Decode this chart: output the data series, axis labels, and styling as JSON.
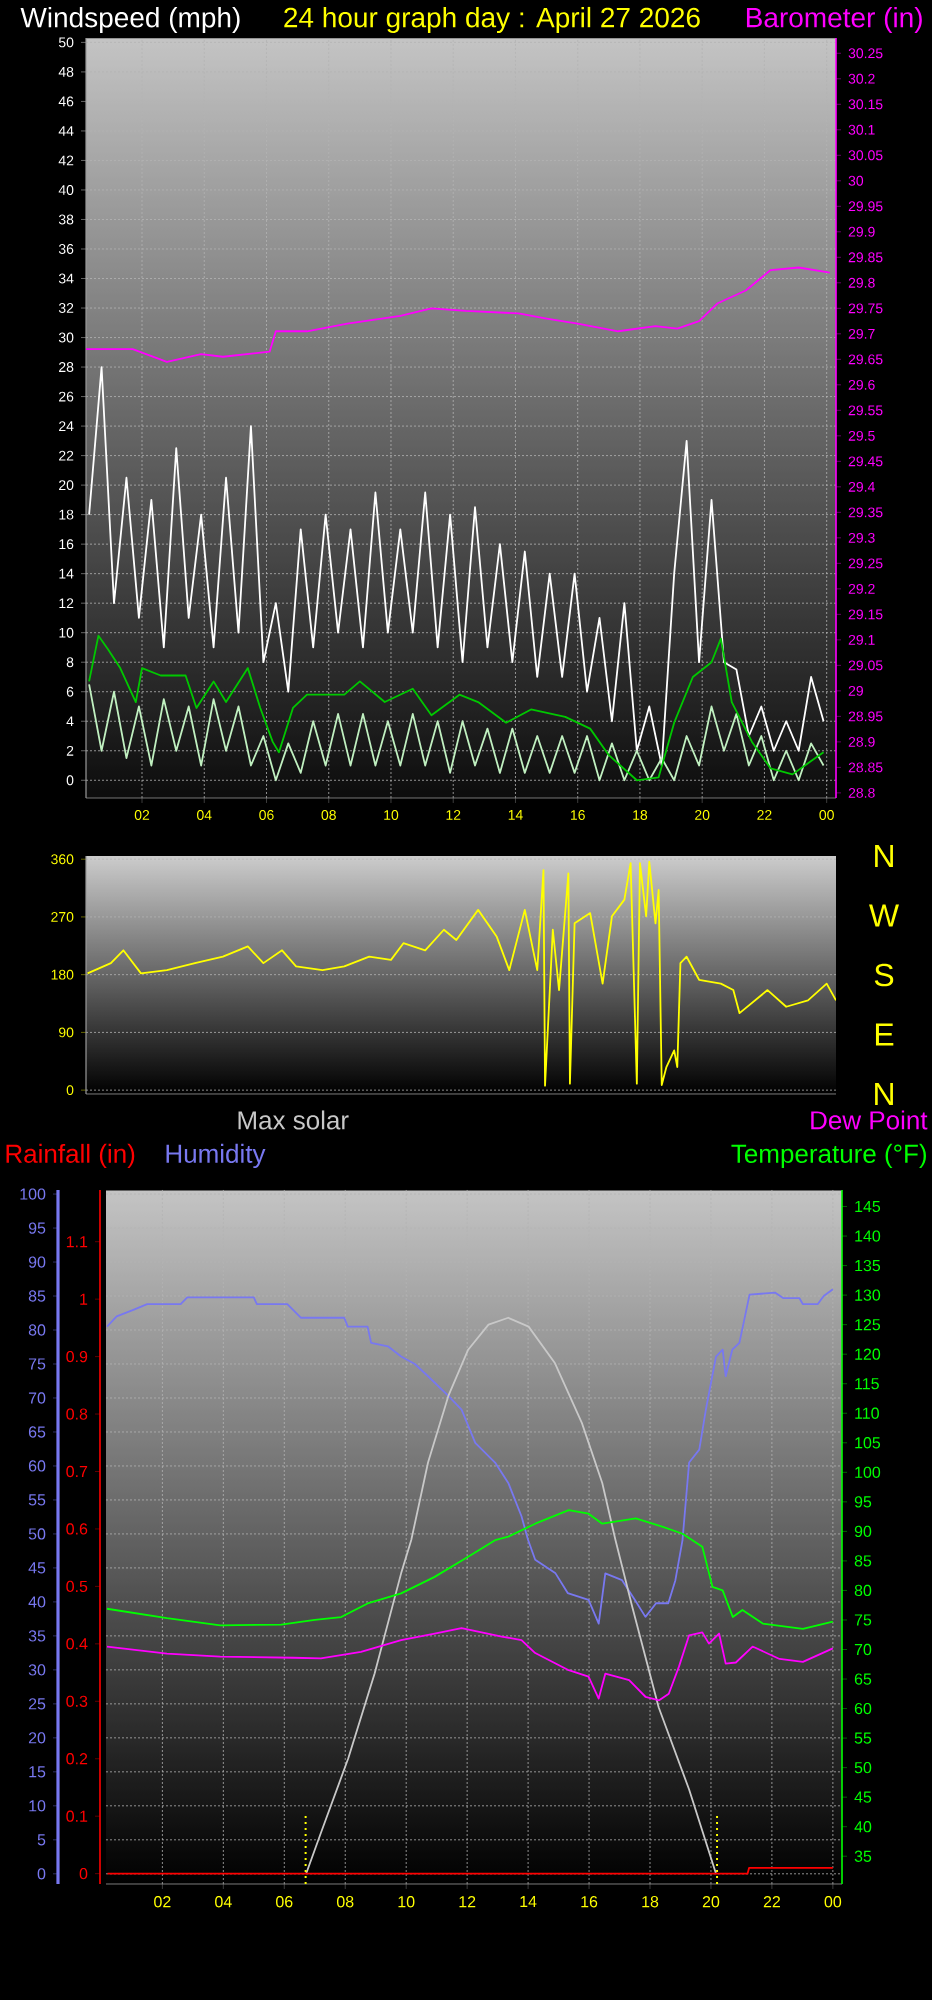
{
  "chart_data": [
    {
      "type": "line",
      "title": "24 hour graph day : April 27 2026",
      "ylabel": "Windspeed (mph)",
      "y2label": "Barometer (in)",
      "xlim": [
        "2026-04-27T00:12",
        "2026-04-28T00:18"
      ],
      "xticks": [
        {
          "value": "2026-04-27T02:00",
          "label": "02"
        },
        {
          "value": "2026-04-27T04:00",
          "label": "04"
        },
        {
          "value": "2026-04-27T06:00",
          "label": "06"
        },
        {
          "value": "2026-04-27T08:00",
          "label": "08"
        },
        {
          "value": "2026-04-27T10:00",
          "label": "10"
        },
        {
          "value": "2026-04-27T12:00",
          "label": "12"
        },
        {
          "value": "2026-04-27T14:00",
          "label": "14"
        },
        {
          "value": "2026-04-27T16:00",
          "label": "16"
        },
        {
          "value": "2026-04-27T18:00",
          "label": "18"
        },
        {
          "value": "2026-04-27T20:00",
          "label": "20"
        },
        {
          "value": "2026-04-27T22:00",
          "label": "22"
        },
        {
          "value": "2026-04-28T00:00",
          "label": "00"
        }
      ],
      "ylim": [
        -1.2,
        50.3
      ],
      "yticks": [
        0,
        2,
        4,
        6,
        8,
        10,
        12,
        14,
        16,
        18,
        20,
        22,
        24,
        26,
        28,
        30,
        32,
        34,
        36,
        38,
        40,
        42,
        44,
        46,
        48,
        50
      ],
      "y2lim": [
        28.79,
        30.28
      ],
      "y2ticks": [
        28.8,
        28.85,
        28.9,
        28.95,
        29,
        29.05,
        29.1,
        29.15,
        29.2,
        29.25,
        29.3,
        29.35,
        29.4,
        29.45,
        29.5,
        29.55,
        29.6,
        29.65,
        29.7,
        29.75,
        29.8,
        29.85,
        29.9,
        29.95,
        30,
        30.05,
        30.1,
        30.15,
        30.2,
        30.25
      ],
      "grid": true,
      "x": [
        "2026-04-27T00:18",
        "2026-04-27T00:42",
        "2026-04-27T01:06",
        "2026-04-27T01:30",
        "2026-04-27T01:54",
        "2026-04-27T02:18",
        "2026-04-27T02:42",
        "2026-04-27T03:06",
        "2026-04-27T03:30",
        "2026-04-27T03:54",
        "2026-04-27T04:18",
        "2026-04-27T04:42",
        "2026-04-27T05:06",
        "2026-04-27T05:30",
        "2026-04-27T05:54",
        "2026-04-27T06:18",
        "2026-04-27T06:42",
        "2026-04-27T07:06",
        "2026-04-27T07:30",
        "2026-04-27T07:54",
        "2026-04-27T08:18",
        "2026-04-27T08:42",
        "2026-04-27T09:06",
        "2026-04-27T09:30",
        "2026-04-27T09:54",
        "2026-04-27T10:18",
        "2026-04-27T10:42",
        "2026-04-27T11:06",
        "2026-04-27T11:30",
        "2026-04-27T11:54",
        "2026-04-27T12:18",
        "2026-04-27T12:42",
        "2026-04-27T13:06",
        "2026-04-27T13:30",
        "2026-04-27T13:54",
        "2026-04-27T14:18",
        "2026-04-27T14:42",
        "2026-04-27T15:06",
        "2026-04-27T15:30",
        "2026-04-27T15:54",
        "2026-04-27T16:18",
        "2026-04-27T16:42",
        "2026-04-27T17:06",
        "2026-04-27T17:30",
        "2026-04-27T17:54",
        "2026-04-27T18:18",
        "2026-04-27T18:42",
        "2026-04-27T19:06",
        "2026-04-27T19:30",
        "2026-04-27T19:54",
        "2026-04-27T20:18",
        "2026-04-27T20:42",
        "2026-04-27T21:06",
        "2026-04-27T21:30",
        "2026-04-27T21:54",
        "2026-04-27T22:18",
        "2026-04-27T22:42",
        "2026-04-27T23:06",
        "2026-04-27T23:30",
        "2026-04-27T23:54"
      ],
      "series": [
        {
          "color": "#ffffff",
          "values": [
            18,
            28,
            12,
            20.5,
            11,
            19,
            9,
            22.5,
            11,
            18,
            9,
            20.5,
            10,
            24,
            8,
            12,
            6,
            17,
            9,
            18,
            10,
            17,
            9,
            19.5,
            10,
            17,
            10,
            19.5,
            9,
            18,
            8,
            18.5,
            9,
            16,
            8,
            15.5,
            7,
            14,
            7,
            14,
            6,
            11,
            4,
            12,
            2,
            5,
            1,
            14,
            23,
            8,
            19,
            8,
            7.5,
            3,
            5,
            2,
            4,
            2,
            7,
            4
          ]
        },
        {
          "color": "#c0f0c0",
          "values": [
            6.5,
            2,
            6,
            1.5,
            5,
            1,
            5.5,
            2,
            5,
            1,
            5.5,
            2,
            5,
            1,
            3,
            0,
            2.5,
            0.5,
            4,
            1,
            4.5,
            1,
            4.5,
            1,
            4,
            1,
            4.5,
            1,
            4,
            0.5,
            4,
            1,
            3.5,
            0.5,
            3.5,
            0.5,
            3,
            0.5,
            3,
            0.5,
            3,
            0,
            2.5,
            0,
            2,
            0,
            1.5,
            0,
            3,
            1,
            5,
            2,
            4.5,
            1,
            3,
            0,
            2,
            0,
            2.5,
            1
          ]
        },
        {
          "color": "#00c800",
          "x": [
            "2026-04-27T00:18",
            "2026-04-27T00:36",
            "2026-04-27T00:54",
            "2026-04-27T01:18",
            "2026-04-27T01:48",
            "2026-04-27T02:00",
            "2026-04-27T02:36",
            "2026-04-27T03:24",
            "2026-04-27T03:45",
            "2026-04-27T04:18",
            "2026-04-27T04:42",
            "2026-04-27T05:24",
            "2026-04-27T05:48",
            "2026-04-27T06:12",
            "2026-04-27T06:24",
            "2026-04-27T06:51",
            "2026-04-27T07:18",
            "2026-04-27T08:30",
            "2026-04-27T09:00",
            "2026-04-27T09:48",
            "2026-04-27T10:42",
            "2026-04-27T11:18",
            "2026-04-27T12:12",
            "2026-04-27T12:48",
            "2026-04-27T13:42",
            "2026-04-27T14:30",
            "2026-04-27T15:36",
            "2026-04-27T16:24",
            "2026-04-27T17:00",
            "2026-04-27T17:54",
            "2026-04-27T18:36",
            "2026-04-27T19:06",
            "2026-04-27T19:42",
            "2026-04-27T20:18",
            "2026-04-27T20:36",
            "2026-04-27T20:57",
            "2026-04-27T21:36",
            "2026-04-27T22:12",
            "2026-04-27T22:54",
            "2026-04-27T23:30",
            "2026-04-27T23:54"
          ],
          "values": [
            6.7,
            9.8,
            8.9,
            7.6,
            5.3,
            7.6,
            7.1,
            7.1,
            4.9,
            6.7,
            5.3,
            7.6,
            4.9,
            2.6,
            1.9,
            4.9,
            5.8,
            5.8,
            6.7,
            5.3,
            6.2,
            4.4,
            5.8,
            5.3,
            3.9,
            4.8,
            4.3,
            3.5,
            1.7,
            0,
            0.2,
            3.9,
            7,
            8,
            9.6,
            5.3,
            2.6,
            0.8,
            0.4,
            1.3,
            1.9
          ]
        },
        {
          "color": "#ff00ff",
          "axis": "y2",
          "x": [
            "2026-04-27T00:12",
            "2026-04-27T01:42",
            "2026-04-27T02:48",
            "2026-04-27T03:54",
            "2026-04-27T04:36",
            "2026-04-27T06:06",
            "2026-04-27T06:18",
            "2026-04-27T07:18",
            "2026-04-27T08:36",
            "2026-04-27T10:18",
            "2026-04-27T11:18",
            "2026-04-27T12:24",
            "2026-04-27T14:06",
            "2026-04-27T15:00",
            "2026-04-27T16:00",
            "2026-04-27T17:18",
            "2026-04-27T18:30",
            "2026-04-27T19:12",
            "2026-04-27T19:54",
            "2026-04-27T20:30",
            "2026-04-27T21:24",
            "2026-04-27T22:12",
            "2026-04-27T23:06",
            "2026-04-28T00:06"
          ],
          "values": [
            29.67,
            29.67,
            29.645,
            29.66,
            29.655,
            29.665,
            29.705,
            29.705,
            29.72,
            29.735,
            29.75,
            29.745,
            29.74,
            29.73,
            29.72,
            29.705,
            29.715,
            29.71,
            29.725,
            29.76,
            29.785,
            29.825,
            29.83,
            29.82
          ]
        }
      ]
    },
    {
      "type": "line",
      "xlim": [
        "2026-04-27T00:12",
        "2026-04-28T00:18"
      ],
      "ylim": [
        -6,
        365
      ],
      "yticks": [
        0,
        90,
        180,
        270,
        360
      ],
      "annotations": [
        "N",
        "W",
        "S",
        "E",
        "N"
      ],
      "grid": "y",
      "tick_labels": "y",
      "series": [
        {
          "color": "#ffff00",
          "x": [
            "2026-04-27T00:15",
            "2026-04-27T01:00",
            "2026-04-27T01:24",
            "2026-04-27T01:58",
            "2026-04-27T02:48",
            "2026-04-27T03:42",
            "2026-04-27T04:36",
            "2026-04-27T05:24",
            "2026-04-27T05:54",
            "2026-04-27T06:30",
            "2026-04-27T06:57",
            "2026-04-27T07:48",
            "2026-04-27T08:30",
            "2026-04-27T09:18",
            "2026-04-27T10:00",
            "2026-04-27T10:24",
            "2026-04-27T11:06",
            "2026-04-27T11:42",
            "2026-04-27T12:06",
            "2026-04-27T12:48",
            "2026-04-27T13:24",
            "2026-04-27T13:48",
            "2026-04-27T14:18",
            "2026-04-27T14:42",
            "2026-04-27T14:54",
            "2026-04-27T14:57",
            "2026-04-27T15:12",
            "2026-04-27T15:24",
            "2026-04-27T15:42",
            "2026-04-27T15:45",
            "2026-04-27T15:54",
            "2026-04-27T16:24",
            "2026-04-27T16:48",
            "2026-04-27T17:06",
            "2026-04-27T17:30",
            "2026-04-27T17:42",
            "2026-04-27T17:54",
            "2026-04-27T18:00",
            "2026-04-27T18:12",
            "2026-04-27T18:18",
            "2026-04-27T18:30",
            "2026-04-27T18:36",
            "2026-04-27T18:42",
            "2026-04-27T18:51",
            "2026-04-27T19:06",
            "2026-04-27T19:12",
            "2026-04-27T19:18",
            "2026-04-27T19:30",
            "2026-04-27T19:54",
            "2026-04-27T20:36",
            "2026-04-27T21:00",
            "2026-04-27T21:12",
            "2026-04-27T22:06",
            "2026-04-27T22:42",
            "2026-04-27T23:24",
            "2026-04-28T00:00",
            "2026-04-28T00:18"
          ],
          "values": [
            182,
            198,
            218,
            182,
            187,
            198,
            208,
            224,
            198,
            218,
            193,
            187,
            193,
            208,
            203,
            229,
            218,
            250,
            234,
            281,
            239,
            187,
            281,
            187,
            343,
            7,
            250,
            156,
            338,
            10,
            260,
            276,
            166,
            271,
            297,
            354,
            10,
            354,
            271,
            356,
            260,
            312,
            8,
            36,
            62,
            36,
            198,
            208,
            172,
            166,
            156,
            120,
            156,
            130,
            140,
            166,
            140
          ]
        }
      ]
    },
    {
      "type": "line",
      "ylabel": "Humidity",
      "y2label": "Temperature (°F)",
      "y3label": "Rainfall (in)",
      "xlim": [
        "2026-04-27T00:09",
        "2026-04-28T00:18"
      ],
      "xticks": [
        {
          "value": "2026-04-27T02:00",
          "label": "02"
        },
        {
          "value": "2026-04-27T04:00",
          "label": "04"
        },
        {
          "value": "2026-04-27T06:00",
          "label": "06"
        },
        {
          "value": "2026-04-27T08:00",
          "label": "08"
        },
        {
          "value": "2026-04-27T10:00",
          "label": "10"
        },
        {
          "value": "2026-04-27T12:00",
          "label": "12"
        },
        {
          "value": "2026-04-27T14:00",
          "label": "14"
        },
        {
          "value": "2026-04-27T16:00",
          "label": "16"
        },
        {
          "value": "2026-04-27T18:00",
          "label": "18"
        },
        {
          "value": "2026-04-27T20:00",
          "label": "20"
        },
        {
          "value": "2026-04-27T22:00",
          "label": "22"
        },
        {
          "value": "2026-04-28T00:00",
          "label": "00"
        }
      ],
      "ylim": [
        -1.5,
        100.6
      ],
      "yticks": [
        0,
        5,
        10,
        15,
        20,
        25,
        30,
        35,
        40,
        45,
        50,
        55,
        60,
        65,
        70,
        75,
        80,
        85,
        90,
        95,
        100
      ],
      "y2lim": [
        30.3,
        147.8
      ],
      "y2ticks": [
        35,
        40,
        45,
        50,
        55,
        60,
        65,
        70,
        75,
        80,
        85,
        90,
        95,
        100,
        105,
        110,
        115,
        120,
        125,
        130,
        135,
        140,
        145
      ],
      "y3lim": [
        -0.018,
        1.19
      ],
      "y3ticks": [
        0,
        0.1,
        0.2,
        0.3,
        0.4,
        0.5,
        0.6,
        0.7,
        0.8,
        0.9,
        1,
        1.1
      ],
      "grid": true,
      "legend": "top",
      "ref_lines": [
        {
          "axis": "x",
          "value": "2026-04-27T06:42",
          "color": "#ffff00",
          "line_style": "dotted"
        },
        {
          "axis": "x",
          "value": "2026-04-27T20:12",
          "color": "#ffff00",
          "line_style": "dotted"
        }
      ],
      "series": [
        {
          "color": "#7878f0",
          "x": [
            "2026-04-27T00:11",
            "2026-04-27T00:30",
            "2026-04-27T01:04",
            "2026-04-27T01:30",
            "2026-04-27T02:36",
            "2026-04-27T02:49",
            "2026-04-27T05:00",
            "2026-04-27T05:06",
            "2026-04-27T06:06",
            "2026-04-27T06:33",
            "2026-04-27T07:58",
            "2026-04-27T08:05",
            "2026-04-27T08:44",
            "2026-04-27T08:51",
            "2026-04-27T09:24",
            "2026-04-27T09:50",
            "2026-04-27T10:17",
            "2026-04-27T10:43",
            "2026-04-27T11:23",
            "2026-04-27T11:49",
            "2026-04-27T12:16",
            "2026-04-27T12:55",
            "2026-04-27T13:21",
            "2026-04-27T13:47",
            "2026-04-27T14:00",
            "2026-04-27T14:14",
            "2026-04-27T14:54",
            "2026-04-27T15:18",
            "2026-04-27T15:59",
            "2026-04-27T16:19",
            "2026-04-27T16:32",
            "2026-04-27T17:05",
            "2026-04-27T17:30",
            "2026-04-27T17:51",
            "2026-04-27T18:12",
            "2026-04-27T18:36",
            "2026-04-27T18:50",
            "2026-04-27T19:04",
            "2026-04-27T19:17",
            "2026-04-27T19:37",
            "2026-04-27T19:50",
            "2026-04-27T20:10",
            "2026-04-27T20:23",
            "2026-04-27T20:29",
            "2026-04-27T20:42",
            "2026-04-27T20:56",
            "2026-04-27T21:16",
            "2026-04-27T22:06",
            "2026-04-27T22:22",
            "2026-04-27T22:54",
            "2026-04-27T23:01",
            "2026-04-27T23:30",
            "2026-04-27T23:42",
            "2026-04-28T00:00"
          ],
          "values": [
            80.5,
            82,
            83,
            83.8,
            83.8,
            84.8,
            84.8,
            83.8,
            83.8,
            81.8,
            81.8,
            80.5,
            80.5,
            78.1,
            77.6,
            76.1,
            75,
            73.2,
            70.3,
            68.3,
            63.4,
            60.5,
            57.5,
            52.6,
            49.1,
            46.2,
            44.2,
            41.3,
            40.3,
            36.8,
            44.2,
            43.2,
            40.3,
            37.8,
            39.8,
            39.8,
            43.2,
            49.1,
            60.5,
            62.4,
            68.3,
            76.1,
            77.1,
            73.2,
            77.1,
            78.1,
            85.2,
            85.5,
            84.7,
            84.7,
            83.8,
            83.8,
            85,
            86
          ]
        },
        {
          "name": "Max solar",
          "color": "#c8c8c8",
          "x": [
            "2026-04-27T06:43",
            "2026-04-27T07:12",
            "2026-04-27T08:06",
            "2026-04-27T08:58",
            "2026-04-27T09:50",
            "2026-04-27T10:10",
            "2026-04-27T10:43",
            "2026-04-27T11:23",
            "2026-04-27T12:02",
            "2026-04-27T12:42",
            "2026-04-27T13:21",
            "2026-04-27T14:01",
            "2026-04-27T14:53",
            "2026-04-27T15:46",
            "2026-04-27T16:26",
            "2026-04-27T16:52",
            "2026-04-27T17:25",
            "2026-04-27T18:17",
            "2026-04-27T19:17",
            "2026-04-27T20:10"
          ],
          "values": [
            0,
            6,
            17,
            29.5,
            44.2,
            49.1,
            60.5,
            70.3,
            77.1,
            80.8,
            81.8,
            80.5,
            75.1,
            66.3,
            57.5,
            49.1,
            39.3,
            24.5,
            12.4,
            0
          ]
        },
        {
          "color": "#ff0000",
          "axis": "y3",
          "x": [
            "2026-04-27T00:12",
            "2026-04-27T21:12",
            "2026-04-27T21:15",
            "2026-04-28T00:00"
          ],
          "values": [
            0,
            0,
            0.01,
            0.01
          ]
        },
        {
          "color": "#00ff00",
          "axis": "y2",
          "x": [
            "2026-04-27T00:11",
            "2026-04-27T02:09",
            "2026-04-27T03:54",
            "2026-04-27T05:54",
            "2026-04-27T07:00",
            "2026-04-27T07:52",
            "2026-04-27T08:44",
            "2026-04-27T09:50",
            "2026-04-27T10:56",
            "2026-04-27T12:02",
            "2026-04-27T12:55",
            "2026-04-27T13:21",
            "2026-04-27T14:14",
            "2026-04-27T15:20",
            "2026-04-27T15:59",
            "2026-04-27T16:26",
            "2026-04-27T17:32",
            "2026-04-27T18:24",
            "2026-04-27T19:04",
            "2026-04-27T19:43",
            "2026-04-27T20:03",
            "2026-04-27T20:23",
            "2026-04-27T20:43",
            "2026-04-27T21:02",
            "2026-04-27T21:42",
            "2026-04-27T23:01",
            "2026-04-28T00:00"
          ],
          "values": [
            76.9,
            75.3,
            74.1,
            74.2,
            75,
            75.5,
            77.8,
            79.5,
            82.3,
            85.7,
            88.5,
            89.1,
            91.3,
            93.6,
            93,
            91.3,
            92.2,
            90.8,
            89.6,
            87.4,
            80.6,
            80,
            75.5,
            76.7,
            74.4,
            73.5,
            74.7
          ]
        },
        {
          "name": "Dew Point",
          "color": "#ff00ff",
          "axis": "y2",
          "x": [
            "2026-04-27T00:11",
            "2026-04-27T02:09",
            "2026-04-27T03:54",
            "2026-04-27T06:18",
            "2026-04-27T07:12",
            "2026-04-27T08:31",
            "2026-04-27T09:50",
            "2026-04-27T10:56",
            "2026-04-27T11:49",
            "2026-04-27T13:08",
            "2026-04-27T13:47",
            "2026-04-27T14:14",
            "2026-04-27T15:20",
            "2026-04-27T15:59",
            "2026-04-27T16:19",
            "2026-04-27T16:32",
            "2026-04-27T17:19",
            "2026-04-27T17:51",
            "2026-04-27T18:18",
            "2026-04-27T18:37",
            "2026-04-27T18:57",
            "2026-04-27T19:17",
            "2026-04-27T19:43",
            "2026-04-27T19:56",
            "2026-04-27T20:16",
            "2026-04-27T20:29",
            "2026-04-27T20:49",
            "2026-04-27T21:22",
            "2026-04-27T22:15",
            "2026-04-27T23:01",
            "2026-04-28T00:00"
          ],
          "values": [
            70.5,
            69.3,
            68.8,
            68.6,
            68.5,
            69.6,
            71.6,
            72.7,
            73.6,
            72.2,
            71.6,
            69.4,
            66.5,
            65.4,
            61.7,
            65.9,
            64.8,
            62.0,
            61.4,
            62.5,
            67.1,
            72.4,
            72.9,
            71,
            72.7,
            67.6,
            67.8,
            70.5,
            68.4,
            67.9,
            70.2
          ]
        }
      ]
    }
  ]
}
